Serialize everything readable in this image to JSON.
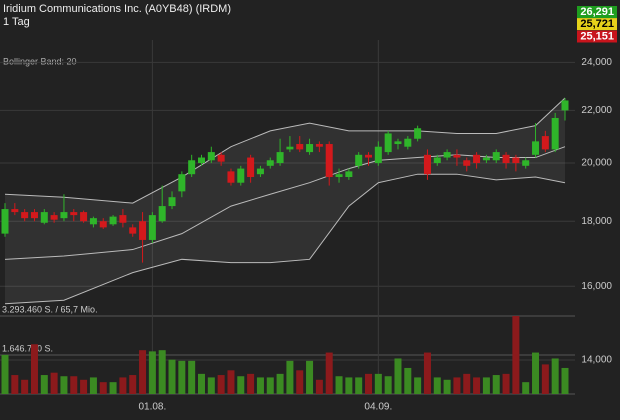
{
  "chart_data": {
    "type": "candlestick",
    "title": "Iridium Communications Inc. (A0YB48) (IRDM)",
    "subtitle": "1 Tag",
    "log_scale": true,
    "grid": true,
    "up_color": "#2fb52a",
    "down_color": "#d3191c",
    "categories": [
      null,
      null,
      null,
      null,
      null,
      null,
      null,
      null,
      null,
      null,
      null,
      null,
      null,
      null,
      null,
      "01.08.",
      null,
      null,
      null,
      null,
      null,
      null,
      null,
      null,
      null,
      null,
      null,
      null,
      null,
      null,
      null,
      null,
      null,
      null,
      null,
      null,
      null,
      null,
      "04.09.",
      null,
      null,
      null,
      null,
      null,
      null,
      null,
      null,
      null,
      null,
      null,
      null,
      null,
      null,
      null,
      null,
      null,
      null,
      null
    ],
    "open": [
      17600,
      18400,
      18300,
      18300,
      17950,
      18200,
      18100,
      18300,
      18300,
      17900,
      18000,
      17900,
      18200,
      17800,
      18000,
      17400,
      18000,
      18500,
      19000,
      19600,
      20000,
      20100,
      20300,
      19700,
      19300,
      20200,
      19600,
      19900,
      20000,
      20500,
      20700,
      20400,
      20700,
      20700,
      19500,
      19500,
      19900,
      20300,
      20000,
      20400,
      20700,
      20600,
      20900,
      20300,
      20000,
      20200,
      20300,
      20100,
      20300,
      20100,
      20100,
      20300,
      20200,
      19900,
      20300,
      21000,
      20500,
      22000
    ],
    "high": [
      18600,
      18600,
      18400,
      18400,
      18400,
      18300,
      18900,
      18400,
      18350,
      18150,
      18100,
      18200,
      18400,
      17900,
      18300,
      18300,
      19200,
      19000,
      19700,
      20300,
      20300,
      20600,
      20400,
      19800,
      19900,
      20300,
      19900,
      20200,
      20900,
      21000,
      21000,
      20900,
      20800,
      20800,
      19800,
      19800,
      20400,
      20400,
      20800,
      21200,
      20900,
      21000,
      21400,
      20500,
      20300,
      20500,
      20500,
      20200,
      20400,
      20300,
      20500,
      20400,
      20300,
      20200,
      21500,
      21200,
      21900,
      22500
    ],
    "low": [
      17500,
      18200,
      18000,
      18000,
      17900,
      17950,
      18000,
      18000,
      17950,
      17800,
      17750,
      17850,
      17800,
      17500,
      16700,
      17300,
      17950,
      18400,
      18800,
      19500,
      19900,
      20000,
      19900,
      19200,
      19200,
      19300,
      19500,
      19800,
      19900,
      20400,
      20400,
      20300,
      20400,
      19200,
      19300,
      19400,
      19800,
      19900,
      19900,
      20300,
      20500,
      20500,
      20800,
      19400,
      19900,
      20100,
      19900,
      19700,
      19800,
      20000,
      20000,
      19800,
      19700,
      19800,
      20200,
      20400,
      20400,
      21600
    ],
    "close": [
      18400,
      18300,
      18100,
      18100,
      18300,
      18050,
      18300,
      18200,
      18000,
      18100,
      17800,
      18150,
      17950,
      17600,
      17400,
      18200,
      18500,
      18800,
      19600,
      20100,
      20200,
      20400,
      20050,
      19300,
      19800,
      19500,
      19800,
      20100,
      20400,
      20600,
      20500,
      20700,
      20600,
      19500,
      19600,
      19700,
      20300,
      20200,
      20600,
      21100,
      20800,
      20900,
      21300,
      19600,
      20200,
      20400,
      20200,
      19900,
      20000,
      20200,
      20400,
      20000,
      20000,
      20100,
      20800,
      20500,
      21700,
      22400
    ],
    "volume": [
      1650000,
      800000,
      600000,
      2100000,
      800000,
      900000,
      750000,
      750000,
      600000,
      700000,
      500000,
      500000,
      700000,
      800000,
      1850000,
      1800000,
      1850000,
      1450000,
      1400000,
      1400000,
      850000,
      700000,
      800000,
      1000000,
      750000,
      850000,
      700000,
      700000,
      850000,
      1400000,
      1000000,
      1400000,
      600000,
      1750000,
      750000,
      700000,
      700000,
      850000,
      850000,
      750000,
      1500000,
      1100000,
      700000,
      1750000,
      700000,
      600000,
      700000,
      850000,
      700000,
      700000,
      800000,
      850000,
      3293460,
      500000,
      1750000,
      1250000,
      1500000,
      1100000
    ],
    "volume_up_color": "#3b8a22",
    "volume_down_color": "#8c1a1c",
    "ylim": [
      14000,
      26291
    ],
    "yticks": [
      {
        "value": 14000,
        "label": "14,000"
      },
      {
        "value": 16000,
        "label": "16,000"
      },
      {
        "value": 18000,
        "label": "18,000"
      },
      {
        "value": 20000,
        "label": "20,000"
      },
      {
        "value": 22000,
        "label": "22,000"
      },
      {
        "value": 24000,
        "label": "24,000"
      }
    ],
    "volume_ylim": [
      0,
      3293460
    ],
    "volume_ticks": [
      {
        "value": 3293460,
        "label": "3.293.460 S. / 65,7 Mio."
      },
      {
        "value": 1646730,
        "label": "1.646.730 S."
      }
    ],
    "price_markers": [
      {
        "value": 26291,
        "label": "26,291",
        "color": "#1f9e1f"
      },
      {
        "value": 25721,
        "label": "25,721",
        "color": "#e6d21a"
      },
      {
        "value": 25151,
        "label": "25,151",
        "color": "#c8141c"
      }
    ],
    "bollinger": {
      "label": "Bollinger Band: 20",
      "x": [
        0,
        6,
        13,
        18,
        23,
        27,
        31,
        35,
        38,
        42,
        46,
        50,
        54,
        57
      ],
      "upper": [
        18900,
        18800,
        18600,
        19500,
        20600,
        21200,
        21500,
        21200,
        21200,
        21200,
        21100,
        21100,
        21400,
        22500
      ],
      "middle": [
        16800,
        16900,
        17100,
        17600,
        18500,
        18900,
        19300,
        19800,
        20100,
        20200,
        20300,
        20200,
        20200,
        20600
      ],
      "lower": [
        15500,
        15600,
        16400,
        16800,
        16700,
        16700,
        16800,
        18500,
        19300,
        19600,
        19600,
        19400,
        19500,
        19300
      ]
    }
  }
}
